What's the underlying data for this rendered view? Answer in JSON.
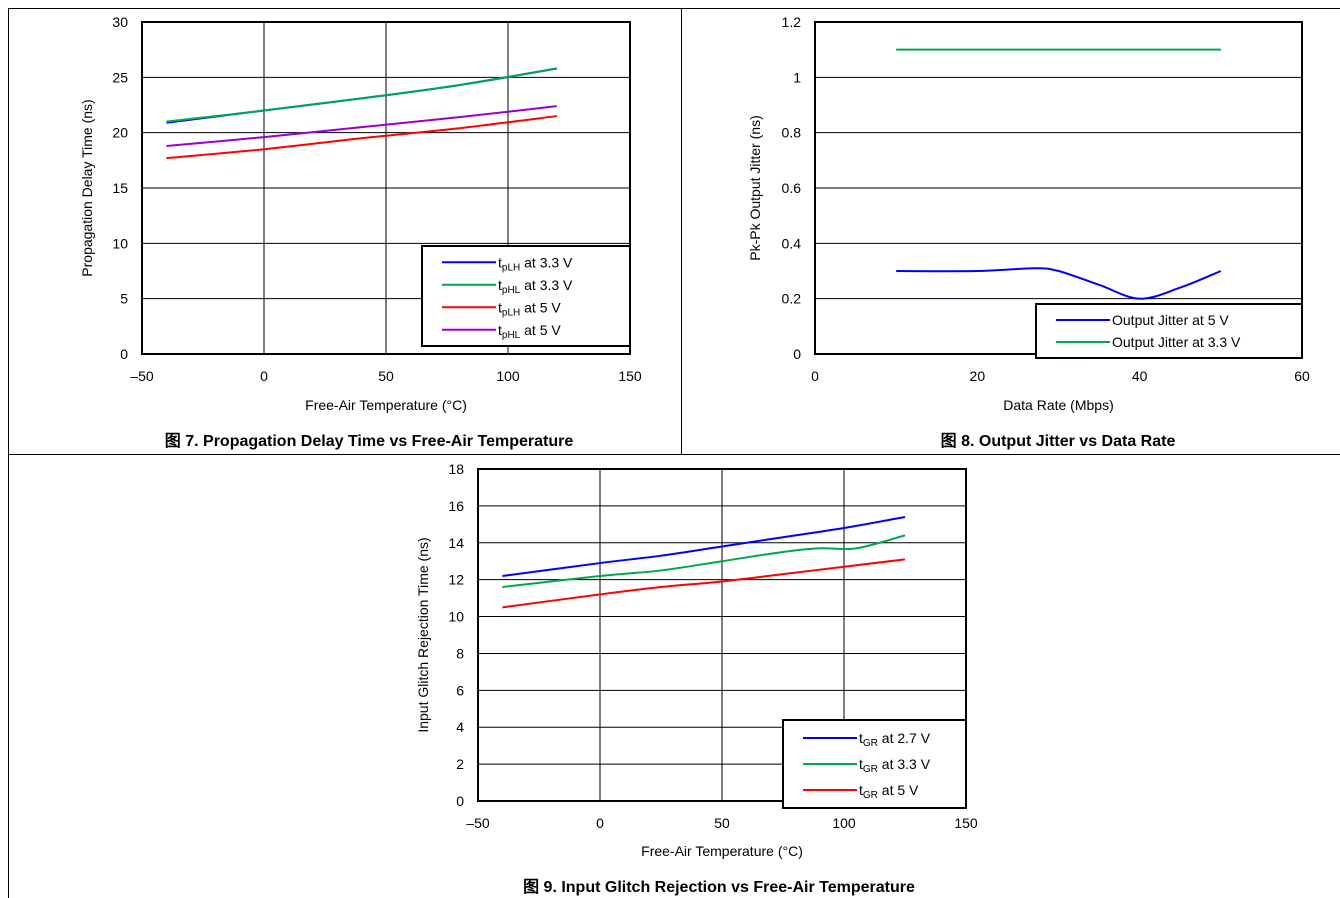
{
  "figures": [
    {
      "caption": "图 7. Propagation Delay Time vs Free-Air Temperature"
    },
    {
      "caption": "图 8. Output Jitter vs Data Rate"
    },
    {
      "caption": "图 9. Input Glitch Rejection vs Free-Air Temperature"
    }
  ],
  "chart_data": [
    {
      "type": "line",
      "xlabel": "Free-Air Temperature (°C)",
      "ylabel": "Propagation Delay Time (ns)",
      "xlim": [
        -50,
        150
      ],
      "ylim": [
        0,
        30
      ],
      "xticks": [
        -50,
        0,
        50,
        100,
        150
      ],
      "xtick_labels": [
        "–50",
        "0",
        "50",
        "100",
        "150"
      ],
      "yticks": [
        0,
        5,
        10,
        15,
        20,
        25,
        30
      ],
      "ytick_labels": [
        "0",
        "5",
        "10",
        "15",
        "20",
        "25",
        "30"
      ],
      "grid": true,
      "legend_position": "bottom-right",
      "series": [
        {
          "name": "t",
          "sub": "pLH",
          "suffix": " at 3.3 V",
          "color": "#0000ff",
          "x": [
            -40,
            0,
            40,
            80,
            120
          ],
          "y": [
            20.9,
            22.0,
            23.1,
            24.3,
            25.8
          ]
        },
        {
          "name": "t",
          "sub": "pHL",
          "suffix": " at 3.3 V",
          "color": "#00a650",
          "x": [
            -40,
            0,
            40,
            80,
            120
          ],
          "y": [
            21.0,
            22.0,
            23.1,
            24.3,
            25.8
          ]
        },
        {
          "name": "t",
          "sub": "pLH",
          "suffix": " at 5 V",
          "color": "#ff0000",
          "x": [
            -40,
            0,
            40,
            80,
            120
          ],
          "y": [
            17.7,
            18.5,
            19.5,
            20.4,
            21.5
          ]
        },
        {
          "name": "t",
          "sub": "pHL",
          "suffix": " at 5 V",
          "color": "#9900cc",
          "x": [
            -40,
            0,
            40,
            80,
            120
          ],
          "y": [
            18.8,
            19.6,
            20.5,
            21.4,
            22.4
          ]
        }
      ]
    },
    {
      "type": "line",
      "xlabel": "Data Rate (Mbps)",
      "ylabel": "Pk-Pk Output Jitter (ns)",
      "xlim": [
        0,
        60
      ],
      "ylim": [
        0,
        1.2
      ],
      "xticks": [
        0,
        20,
        40,
        60
      ],
      "xtick_labels": [
        "0",
        "20",
        "40",
        "60"
      ],
      "yticks": [
        0,
        0.2,
        0.4,
        0.6,
        0.8,
        1.0,
        1.2
      ],
      "ytick_labels": [
        "0",
        "0.2",
        "0.4",
        "0.6",
        "0.8",
        "1",
        "1.2"
      ],
      "grid": false,
      "legend_position": "bottom-right",
      "series": [
        {
          "name": "Output Jitter at 5 V",
          "color": "#0000ff",
          "x": [
            10,
            20,
            27,
            30,
            35,
            40,
            45,
            50
          ],
          "y": [
            0.3,
            0.3,
            0.31,
            0.3,
            0.25,
            0.2,
            0.24,
            0.3
          ]
        },
        {
          "name": "Output Jitter at 3.3 V",
          "color": "#00a650",
          "x": [
            10,
            50
          ],
          "y": [
            1.1,
            1.1
          ]
        }
      ]
    },
    {
      "type": "line",
      "xlabel": "Free-Air Temperature (°C)",
      "ylabel": "Input Glitch Rejection Time (ns)",
      "xlim": [
        -50,
        150
      ],
      "ylim": [
        0,
        18
      ],
      "xticks": [
        -50,
        0,
        50,
        100,
        150
      ],
      "xtick_labels": [
        "–50",
        "0",
        "50",
        "100",
        "150"
      ],
      "yticks": [
        0,
        2,
        4,
        6,
        8,
        10,
        12,
        14,
        16,
        18
      ],
      "ytick_labels": [
        "0",
        "2",
        "4",
        "6",
        "8",
        "10",
        "12",
        "14",
        "16",
        "18"
      ],
      "grid": true,
      "legend_position": "bottom-right",
      "series": [
        {
          "name": "t",
          "sub": "GR",
          "suffix": " at 2.7 V",
          "color": "#0000ff",
          "x": [
            -40,
            0,
            25,
            50,
            75,
            100,
            125
          ],
          "y": [
            12.2,
            12.9,
            13.3,
            13.8,
            14.3,
            14.8,
            15.4
          ]
        },
        {
          "name": "t",
          "sub": "GR",
          "suffix": " at 3.3 V",
          "color": "#00a650",
          "x": [
            -40,
            0,
            25,
            50,
            75,
            90,
            105,
            125
          ],
          "y": [
            11.6,
            12.2,
            12.5,
            13.0,
            13.5,
            13.7,
            13.7,
            14.4
          ]
        },
        {
          "name": "t",
          "sub": "GR",
          "suffix": " at 5 V",
          "color": "#ff0000",
          "x": [
            -40,
            0,
            25,
            50,
            75,
            100,
            125
          ],
          "y": [
            10.5,
            11.2,
            11.6,
            11.9,
            12.3,
            12.7,
            13.1
          ]
        }
      ]
    }
  ]
}
